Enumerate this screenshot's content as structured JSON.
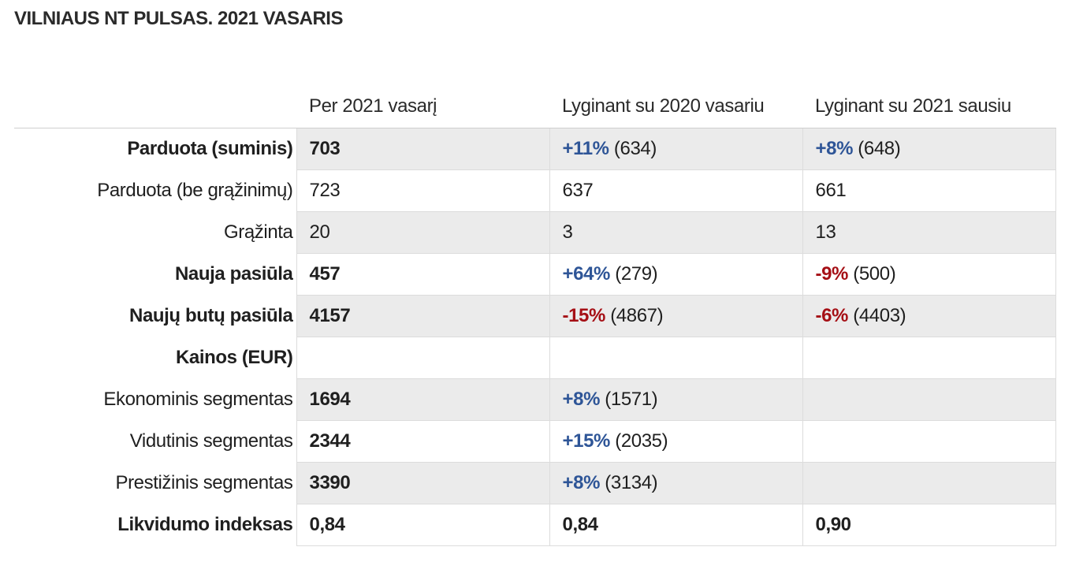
{
  "title": "VILNIAUS NT PULSAS. 2021 VASARIS",
  "colors": {
    "positive": "#2e5597",
    "negative": "#a50f15",
    "row_shade": "#ebebeb"
  },
  "headers": [
    "",
    "Per 2021 vasarį",
    "Lyginant su 2020 vasariu",
    "Lyginant su 2021 sausiu"
  ],
  "rows": [
    {
      "label": "Parduota (suminis)",
      "value": "703",
      "vs_2020_change": "+11%",
      "vs_2020_ref": "(634)",
      "vs_jan_change": "+8%",
      "vs_jan_ref": "(648)"
    },
    {
      "label": "Parduota (be grąžinimų)",
      "value": "723",
      "vs_2020": "637",
      "vs_jan": "661"
    },
    {
      "label": "Grąžinta",
      "value": "20",
      "vs_2020": "3",
      "vs_jan": "13"
    },
    {
      "label": "Nauja pasiūla",
      "value": "457",
      "vs_2020_change": "+64%",
      "vs_2020_ref": "(279)",
      "vs_jan_change": "-9%",
      "vs_jan_ref": "(500)"
    },
    {
      "label": "Naujų butų pasiūla",
      "value": "4157",
      "vs_2020_change": "-15%",
      "vs_2020_ref": "(4867)",
      "vs_jan_change": "-6%",
      "vs_jan_ref": "(4403)"
    },
    {
      "label": "Kainos (EUR)"
    },
    {
      "label": "Ekonominis segmentas",
      "value": "1694",
      "vs_2020_change": "+8%",
      "vs_2020_ref": "(1571)"
    },
    {
      "label": "Vidutinis segmentas",
      "value": "2344",
      "vs_2020_change": "+15%",
      "vs_2020_ref": "(2035)"
    },
    {
      "label": "Prestižinis segmentas",
      "value": "3390",
      "vs_2020_change": "+8%",
      "vs_2020_ref": "(3134)"
    },
    {
      "label": "Likvidumo indeksas",
      "value": "0,84",
      "vs_2020": "0,84",
      "vs_jan": "0,90"
    }
  ]
}
